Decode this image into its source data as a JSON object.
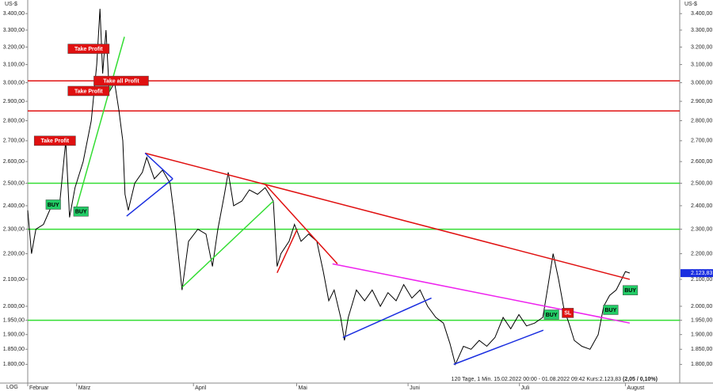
{
  "chart_data": {
    "type": "line",
    "currency": "US-$",
    "scale_label": "LOG",
    "log_scale": true,
    "grid": false,
    "footer": "120 Tage, 1 Min. 15.02.2022 00:00 - 01.08.2022 09:42 Kurs:2.123,83",
    "footer_change": "(2,05 / 0,10%)",
    "last_price": {
      "value": 2123.83,
      "label": "2.123,83"
    },
    "xlim": [
      0,
      120
    ],
    "xticks": [
      {
        "value": 0,
        "label": "Februar"
      },
      {
        "value": 9,
        "label": "März"
      },
      {
        "value": 30.5,
        "label": "April"
      },
      {
        "value": 49.5,
        "label": "Mai"
      },
      {
        "value": 70,
        "label": "Juni"
      },
      {
        "value": 90.5,
        "label": "Juli"
      },
      {
        "value": 110,
        "label": "August"
      }
    ],
    "ylim": [
      1740,
      3485
    ],
    "yticks": [
      {
        "value": 3400,
        "label": "3.400,00"
      },
      {
        "value": 3300,
        "label": "3.300,00"
      },
      {
        "value": 3200,
        "label": "3.200,00"
      },
      {
        "value": 3100,
        "label": "3.100,00"
      },
      {
        "value": 3000,
        "label": "3.000,00"
      },
      {
        "value": 2900,
        "label": "2.900,00"
      },
      {
        "value": 2800,
        "label": "2.800,00"
      },
      {
        "value": 2700,
        "label": "2.700,00"
      },
      {
        "value": 2600,
        "label": "2.600,00"
      },
      {
        "value": 2500,
        "label": "2.500,00"
      },
      {
        "value": 2400,
        "label": "2.400,00"
      },
      {
        "value": 2300,
        "label": "2.300,00"
      },
      {
        "value": 2200,
        "label": "2.200,00"
      },
      {
        "value": 2100,
        "label": "2.100,00"
      },
      {
        "value": 2000,
        "label": "2.000,00"
      },
      {
        "value": 1950,
        "label": "1.950,00"
      },
      {
        "value": 1900,
        "label": "1.900,00"
      },
      {
        "value": 1850,
        "label": "1.850,00"
      },
      {
        "value": 1800,
        "label": "1.800,00"
      }
    ],
    "x": [
      0,
      0.7,
      1.5,
      2.9,
      4.4,
      5.8,
      7,
      7.7,
      8.7,
      10.2,
      11.7,
      12.7,
      13.3,
      13.8,
      14.4,
      15,
      16,
      16.8,
      17.5,
      17.9,
      18.5,
      19.7,
      21.1,
      21.9,
      23.3,
      24.8,
      26.2,
      27,
      27.7,
      28.4,
      29.6,
      31.3,
      32.8,
      34,
      35,
      36.2,
      36.9,
      37.9,
      39.4,
      40.8,
      42.3,
      43.7,
      45.2,
      45.9,
      46.6,
      48.1,
      49.1,
      50.3,
      51.7,
      53.2,
      54.4,
      55.4,
      56.4,
      57.6,
      58.3,
      59,
      60.5,
      62,
      63.4,
      64.9,
      66.3,
      67.8,
      69.2,
      70.7,
      72.2,
      73.6,
      75.1,
      76.5,
      77.7,
      78.7,
      80.2,
      81.6,
      83.1,
      84.5,
      86,
      87.5,
      88.9,
      90.4,
      91.8,
      93.3,
      94.8,
      95.8,
      96.7,
      97.7,
      98.7,
      99.6,
      100.6,
      102,
      103.5,
      105,
      106,
      107.1,
      108.3,
      109.3,
      110,
      110.8
    ],
    "series": [
      {
        "color": "#000000",
        "values": [
          2380,
          2200,
          2300,
          2320,
          2400,
          2390,
          2700,
          2350,
          2480,
          2600,
          2800,
          3100,
          3430,
          3050,
          3300,
          2950,
          3000,
          2850,
          2700,
          2450,
          2380,
          2500,
          2550,
          2620,
          2520,
          2560,
          2500,
          2350,
          2200,
          2060,
          2250,
          2300,
          2280,
          2150,
          2300,
          2450,
          2550,
          2400,
          2420,
          2470,
          2450,
          2480,
          2420,
          2150,
          2200,
          2250,
          2320,
          2250,
          2280,
          2250,
          2130,
          2020,
          2060,
          1960,
          1880,
          1960,
          2060,
          2020,
          2060,
          2000,
          2050,
          2020,
          2080,
          2030,
          2060,
          2000,
          1960,
          1940,
          1870,
          1800,
          1860,
          1850,
          1880,
          1860,
          1890,
          1960,
          1920,
          1970,
          1930,
          1940,
          1960,
          2080,
          2200,
          2100,
          1990,
          1940,
          1880,
          1860,
          1850,
          1900,
          2000,
          2040,
          2060,
          2100,
          2130,
          2124
        ]
      }
    ],
    "hlines": [
      {
        "value": 3010,
        "color": "#e01010"
      },
      {
        "value": 2850,
        "color": "#e01010"
      },
      {
        "value": 2500,
        "color": "#33dd33"
      },
      {
        "value": 2300,
        "color": "#33dd33"
      },
      {
        "value": 1950,
        "color": "#33dd33"
      }
    ],
    "trendlines": [
      {
        "color": "#e01010",
        "points": [
          [
            21.6,
            2640
          ],
          [
            110.8,
            2100
          ]
        ]
      },
      {
        "color": "#e01010",
        "points": [
          [
            43.7,
            2495
          ],
          [
            57,
            2160
          ]
        ]
      },
      {
        "color": "#e01010",
        "points": [
          [
            45.9,
            2125
          ],
          [
            49.6,
            2300
          ]
        ]
      },
      {
        "color": "#33dd33",
        "points": [
          [
            8.7,
            2370
          ],
          [
            17.8,
            3260
          ]
        ]
      },
      {
        "color": "#33dd33",
        "points": [
          [
            28.4,
            2070
          ],
          [
            45.2,
            2420
          ]
        ]
      },
      {
        "color": "#1a2ee0",
        "points": [
          [
            21.6,
            2640
          ],
          [
            26.7,
            2520
          ]
        ]
      },
      {
        "color": "#1a2ee0",
        "points": [
          [
            18.2,
            2355
          ],
          [
            26.7,
            2520
          ]
        ]
      },
      {
        "color": "#ee22ee",
        "points": [
          [
            56.1,
            2160
          ],
          [
            110.8,
            1940
          ]
        ]
      },
      {
        "color": "#1a2ee0",
        "points": [
          [
            58,
            1890
          ],
          [
            74.3,
            2030
          ]
        ]
      },
      {
        "color": "#1a2ee0",
        "points": [
          [
            78.4,
            1800
          ],
          [
            94.9,
            1915
          ]
        ]
      }
    ],
    "signals": [
      {
        "label": "Take Profit",
        "x": 11.2,
        "price": 3190,
        "color": "#e01010"
      },
      {
        "label": "Take Profit",
        "x": 11.2,
        "price": 2955,
        "color": "#e01010"
      },
      {
        "label": "Take Profit",
        "x": 5,
        "price": 2700,
        "color": "#e01010"
      },
      {
        "label": "Take all Profit",
        "x": 17.2,
        "price": 3010,
        "color": "#e01010"
      },
      {
        "label": "BUY",
        "x": 4.7,
        "price": 2405,
        "color": "#22cc66"
      },
      {
        "label": "BUY",
        "x": 9.8,
        "price": 2375,
        "color": "#22cc66"
      },
      {
        "label": "BUY",
        "x": 96.4,
        "price": 1970,
        "color": "#22cc66"
      },
      {
        "label": "SL",
        "x": 99.4,
        "price": 1976,
        "color": "#e01010"
      },
      {
        "label": "BUY",
        "x": 107.3,
        "price": 1987,
        "color": "#22cc66"
      },
      {
        "label": "BUY",
        "x": 110.9,
        "price": 2059,
        "color": "#22cc66"
      }
    ]
  }
}
